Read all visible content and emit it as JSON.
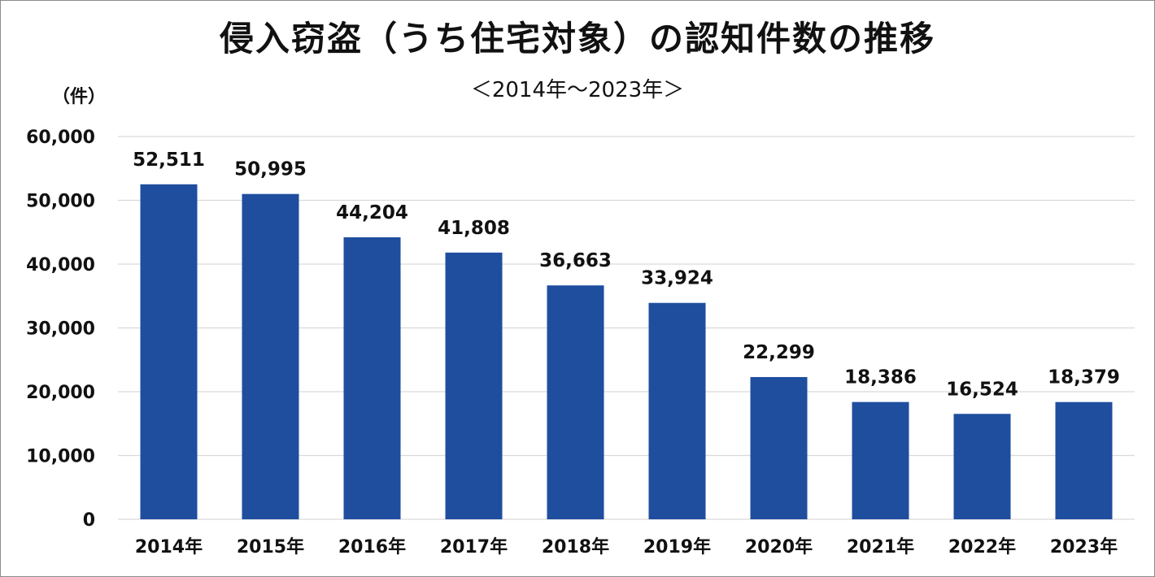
{
  "chart_data": {
    "type": "bar",
    "title": "侵入窃盗（うち住宅対象）の認知件数の推移",
    "subtitle": "＜2014年～2023年＞",
    "ylabel": "（件）",
    "xlabel": "",
    "categories": [
      "2014年",
      "2015年",
      "2016年",
      "2017年",
      "2018年",
      "2019年",
      "2020年",
      "2021年",
      "2022年",
      "2023年"
    ],
    "values": [
      52511,
      50995,
      44204,
      41808,
      36663,
      33924,
      22299,
      18386,
      16524,
      18379
    ],
    "value_labels": [
      "52,511",
      "50,995",
      "44,204",
      "41,808",
      "36,663",
      "33,924",
      "22,299",
      "18,386",
      "16,524",
      "18,379"
    ],
    "ylim": [
      0,
      60000
    ],
    "yticks": [
      0,
      10000,
      20000,
      30000,
      40000,
      50000,
      60000
    ],
    "ytick_labels": [
      "0",
      "10,000",
      "20,000",
      "30,000",
      "40,000",
      "50,000",
      "60,000"
    ],
    "grid": true,
    "legend": "none",
    "bar_color": "#1f4e9f",
    "grid_color": "#d9d9d9"
  }
}
